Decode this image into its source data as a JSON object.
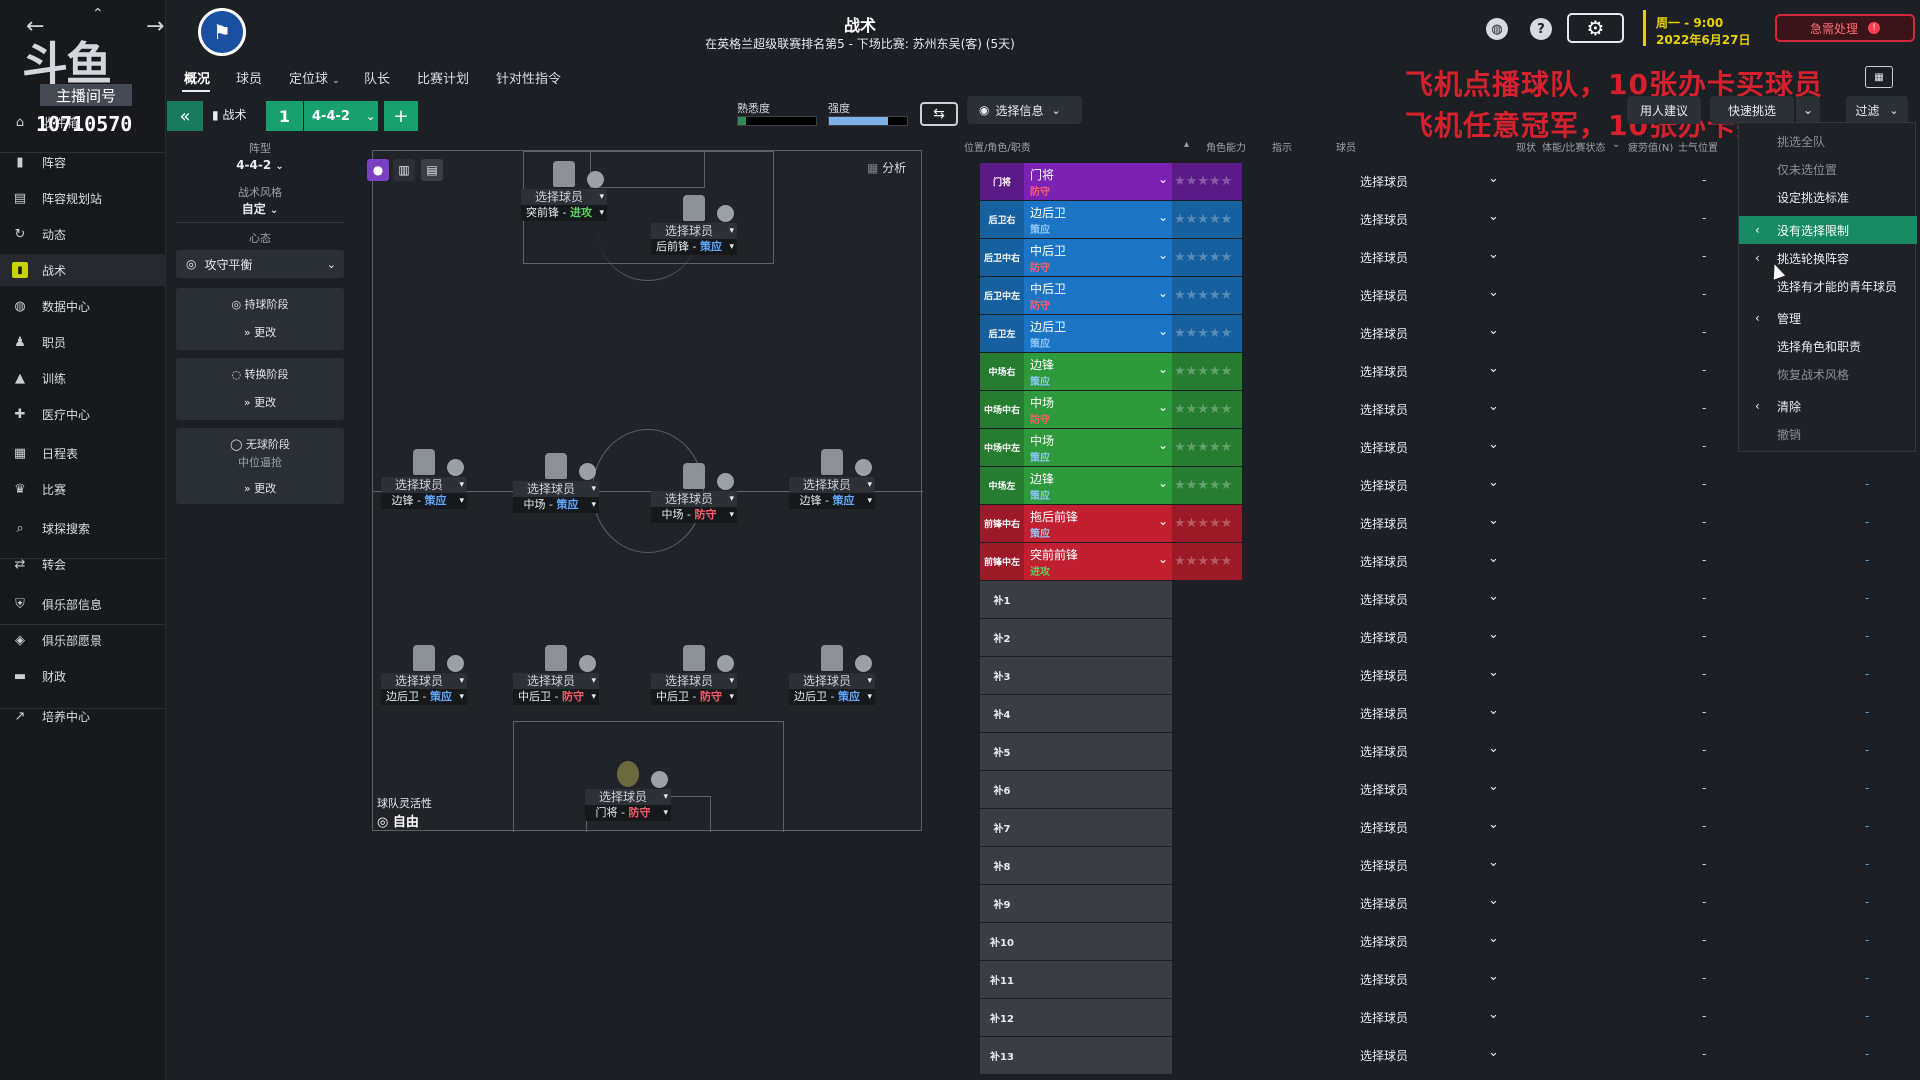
{
  "header": {
    "title": "战术",
    "next_match": "在英格兰超级联赛排名第5 - 下场比赛: 苏州东吴(客) (5天)",
    "date_day": "周一 - 9:00",
    "date_full": "2022年6月27日",
    "urgent_label": "急需处理",
    "urgent_badge": "!"
  },
  "overlay": {
    "watermark": "斗鱼",
    "watermark_sub": "主播间号",
    "account_id": "10710570",
    "promo_line1": "飞机点播球队，10张办卡买球员",
    "promo_line2": "飞机任意冠军，10张办卡买球员"
  },
  "sidebar": {
    "items": [
      {
        "label": "收件箱",
        "icon": "home-icon"
      },
      {
        "label": "阵容",
        "icon": "shirt-icon"
      },
      {
        "label": "阵容规划站",
        "icon": "clipboard-icon"
      },
      {
        "label": "动态",
        "icon": "refresh-icon"
      },
      {
        "label": "战术",
        "icon": "tactics-icon"
      },
      {
        "label": "数据中心",
        "icon": "globe-icon"
      },
      {
        "label": "职员",
        "icon": "staff-icon"
      },
      {
        "label": "训练",
        "icon": "training-icon"
      },
      {
        "label": "医疗中心",
        "icon": "medical-icon"
      },
      {
        "label": "日程表",
        "icon": "calendar-icon"
      },
      {
        "label": "比赛",
        "icon": "trophy-icon"
      },
      {
        "label": "球探搜索",
        "icon": "search-icon"
      },
      {
        "label": "转会",
        "icon": "transfer-icon"
      },
      {
        "label": "俱乐部信息",
        "icon": "shield-icon"
      },
      {
        "label": "俱乐部愿景",
        "icon": "vision-icon"
      },
      {
        "label": "财政",
        "icon": "finance-icon"
      },
      {
        "label": "培养中心",
        "icon": "development-icon"
      }
    ],
    "active_index": 4
  },
  "tabs": [
    "概况",
    "球员",
    "定位球",
    "队长",
    "比赛计划",
    "针对性指令"
  ],
  "toolbar": {
    "collapse": "«",
    "tactic_label": "战术",
    "slot": "1",
    "formation": "4-4-2",
    "add": "+",
    "familiarity_label": "熟悉度",
    "familiarity_level": 0.1,
    "strength_label": "强度",
    "strength_level": 0.75,
    "select_info": "选择信息",
    "staff_suggest": "用人建议",
    "quick_pick": "快速挑选",
    "filter": "过滤"
  },
  "left_panel": {
    "formation_label": "阵型",
    "formation_value": "4-4-2",
    "style_label": "战术风格",
    "style_value": "自定",
    "mentality_label": "心态",
    "mentality_value": "攻守平衡",
    "phases": [
      {
        "title": "持球阶段",
        "sub": "",
        "change": "更改"
      },
      {
        "title": "转换阶段",
        "sub": "",
        "change": "更改"
      },
      {
        "title": "无球阶段",
        "sub": "中位逼抢",
        "change": "更改"
      }
    ]
  },
  "pitch": {
    "analysis": "分析",
    "flex_label": "球队灵活性",
    "flex_value": "自由",
    "slots": [
      {
        "name": "选择球员",
        "role": "突前锋",
        "duty": "进攻",
        "duty_color": "#5ad15a"
      },
      {
        "name": "选择球员",
        "role": "后前锋",
        "duty": "策应",
        "duty_color": "#62a8ff"
      },
      {
        "name": "选择球员",
        "role": "边锋",
        "duty": "策应",
        "duty_color": "#62a8ff"
      },
      {
        "name": "选择球员",
        "role": "中场",
        "duty": "策应",
        "duty_color": "#62a8ff"
      },
      {
        "name": "选择球员",
        "role": "中场",
        "duty": "防守",
        "duty_color": "#ff5a6a"
      },
      {
        "name": "选择球员",
        "role": "边锋",
        "duty": "策应",
        "duty_color": "#62a8ff"
      },
      {
        "name": "选择球员",
        "role": "边后卫",
        "duty": "策应",
        "duty_color": "#62a8ff"
      },
      {
        "name": "选择球员",
        "role": "中后卫",
        "duty": "防守",
        "duty_color": "#ff5a6a"
      },
      {
        "name": "选择球员",
        "role": "中后卫",
        "duty": "防守",
        "duty_color": "#ff5a6a"
      },
      {
        "name": "选择球员",
        "role": "边后卫",
        "duty": "策应",
        "duty_color": "#62a8ff"
      },
      {
        "name": "选择球员",
        "role": "门将",
        "duty": "防守",
        "duty_color": "#ff5a6a"
      }
    ]
  },
  "table": {
    "headers": {
      "position": "位置/角色/职责",
      "ability": "角色能力",
      "instructions": "指示",
      "player": "球员",
      "condition": "现状",
      "fitness": "体能/比赛状态",
      "fatigue": "疲劳值(N)",
      "morale": "士气",
      "pos": "位置"
    },
    "rows": [
      {
        "pos": "门将",
        "role": "门将",
        "duty": "防守",
        "color": "#7b22b5",
        "dark": "#5c1a87",
        "duty_color": "#ff5a6a"
      },
      {
        "pos": "后卫右",
        "role": "边后卫",
        "duty": "策应",
        "color": "#1c74c4",
        "dark": "#17609f",
        "duty_color": "#8ec6ff"
      },
      {
        "pos": "后卫中右",
        "role": "中后卫",
        "duty": "防守",
        "color": "#1c74c4",
        "dark": "#17609f",
        "duty_color": "#ff5a6a"
      },
      {
        "pos": "后卫中左",
        "role": "中后卫",
        "duty": "防守",
        "color": "#1c74c4",
        "dark": "#17609f",
        "duty_color": "#ff5a6a"
      },
      {
        "pos": "后卫左",
        "role": "边后卫",
        "duty": "策应",
        "color": "#1c74c4",
        "dark": "#17609f",
        "duty_color": "#8ec6ff"
      },
      {
        "pos": "中场右",
        "role": "边锋",
        "duty": "策应",
        "color": "#2f9a3b",
        "dark": "#267d30",
        "duty_color": "#8ec6ff"
      },
      {
        "pos": "中场中右",
        "role": "中场",
        "duty": "防守",
        "color": "#2f9a3b",
        "dark": "#267d30",
        "duty_color": "#ff5a6a"
      },
      {
        "pos": "中场中左",
        "role": "中场",
        "duty": "策应",
        "color": "#2f9a3b",
        "dark": "#267d30",
        "duty_color": "#8ec6ff"
      },
      {
        "pos": "中场左",
        "role": "边锋",
        "duty": "策应",
        "color": "#2f9a3b",
        "dark": "#267d30",
        "duty_color": "#8ec6ff"
      },
      {
        "pos": "前锋中右",
        "role": "拖后前锋",
        "duty": "策应",
        "color": "#c22030",
        "dark": "#9c1a27",
        "duty_color": "#8ec6ff"
      },
      {
        "pos": "前锋中左",
        "role": "突前前锋",
        "duty": "进攻",
        "color": "#c22030",
        "dark": "#9c1a27",
        "duty_color": "#5ad15a"
      }
    ],
    "bench": [
      "补1",
      "补2",
      "补3",
      "补4",
      "补5",
      "补6",
      "补7",
      "补8",
      "补9",
      "补10",
      "补11",
      "补12",
      "补13"
    ],
    "select_player": "选择球员",
    "dash": "-"
  },
  "dropdown": {
    "items": [
      {
        "label": "挑选全队",
        "style": "dim",
        "arrow": ""
      },
      {
        "label": "仅未选位置",
        "style": "dim",
        "arrow": ""
      },
      {
        "label": "设定挑选标准",
        "style": "",
        "arrow": ""
      },
      {
        "label": "没有选择限制",
        "style": "hl",
        "arrow": "‹"
      },
      {
        "label": "挑选轮换阵容",
        "style": "",
        "arrow": "‹"
      },
      {
        "label": "选择有才能的青年球员",
        "style": "",
        "arrow": ""
      },
      {
        "label": "管理",
        "style": "",
        "arrow": "‹"
      },
      {
        "label": "选择角色和职责",
        "style": "",
        "arrow": ""
      },
      {
        "label": "恢复战术风格",
        "style": "dim",
        "arrow": ""
      },
      {
        "label": "清除",
        "style": "",
        "arrow": "‹"
      },
      {
        "label": "撤销",
        "style": "dim",
        "arrow": ""
      }
    ]
  }
}
